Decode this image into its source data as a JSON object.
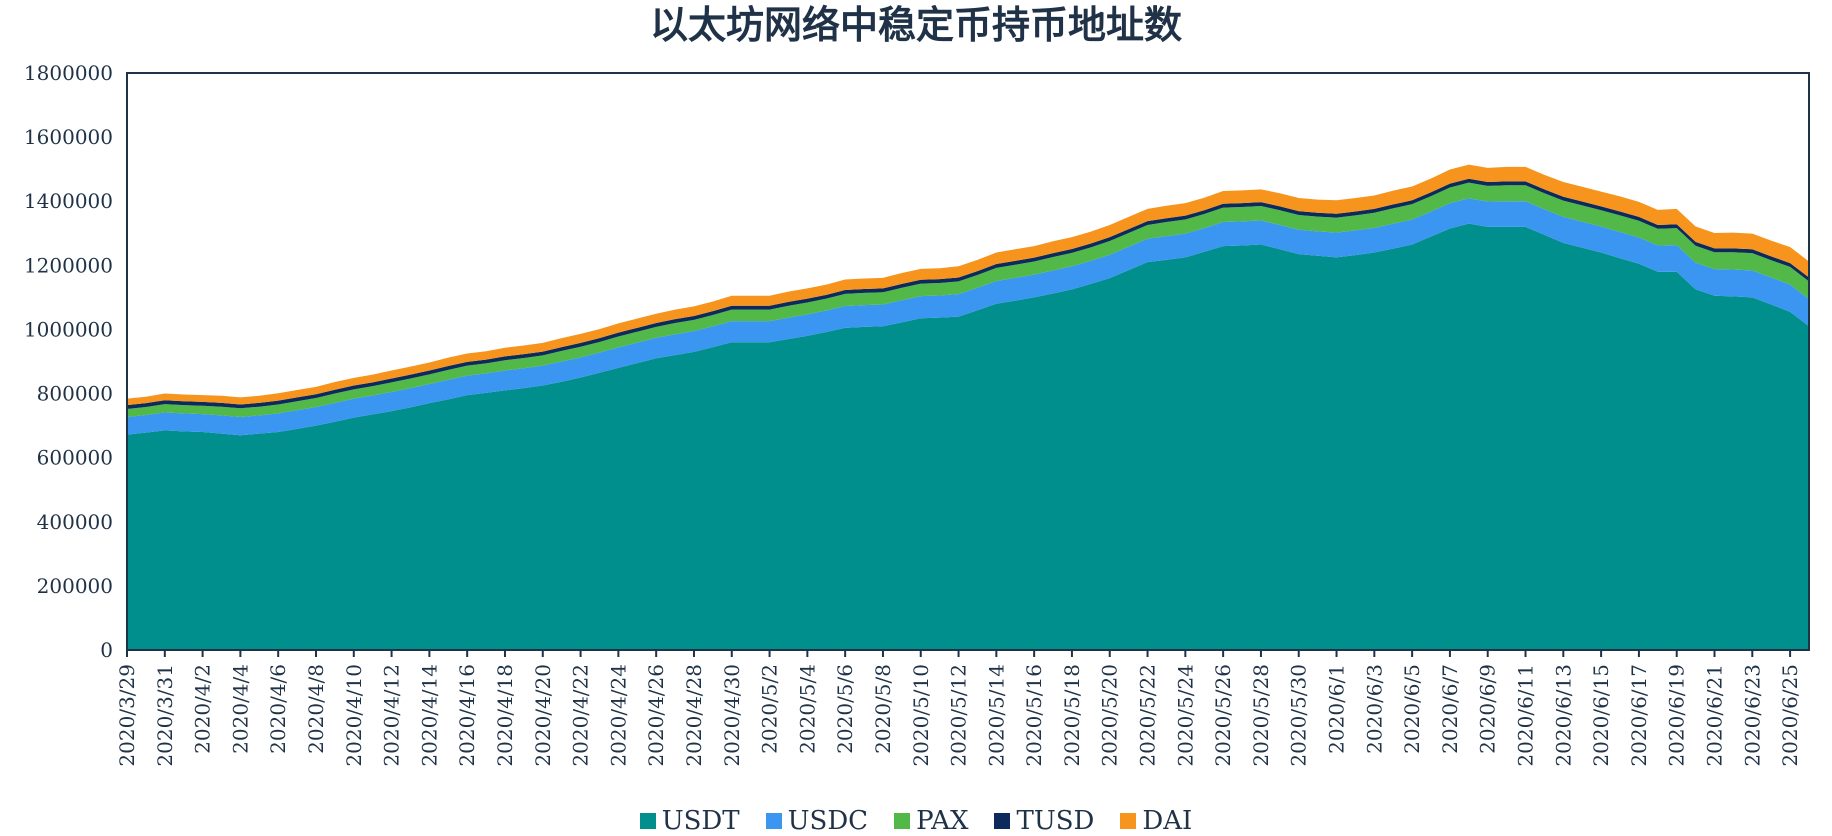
{
  "chart_data": {
    "type": "area",
    "stacked": true,
    "title": "以太坊网络中稳定币持币地址数",
    "xlabel": "",
    "ylabel": "",
    "ylim": [
      0,
      1800000
    ],
    "yticks": [
      0,
      200000,
      400000,
      600000,
      800000,
      1000000,
      1200000,
      1400000,
      1600000,
      1800000
    ],
    "grid": false,
    "legend_position": "bottom",
    "x": [
      "2020/3/29",
      "2020/3/30",
      "2020/3/31",
      "2020/4/1",
      "2020/4/2",
      "2020/4/3",
      "2020/4/4",
      "2020/4/5",
      "2020/4/6",
      "2020/4/7",
      "2020/4/8",
      "2020/4/9",
      "2020/4/10",
      "2020/4/11",
      "2020/4/12",
      "2020/4/13",
      "2020/4/14",
      "2020/4/15",
      "2020/4/16",
      "2020/4/17",
      "2020/4/18",
      "2020/4/19",
      "2020/4/20",
      "2020/4/21",
      "2020/4/22",
      "2020/4/23",
      "2020/4/24",
      "2020/4/25",
      "2020/4/26",
      "2020/4/27",
      "2020/4/28",
      "2020/4/29",
      "2020/4/30",
      "2020/5/1",
      "2020/5/2",
      "2020/5/3",
      "2020/5/4",
      "2020/5/5",
      "2020/5/6",
      "2020/5/7",
      "2020/5/8",
      "2020/5/9",
      "2020/5/10",
      "2020/5/11",
      "2020/5/12",
      "2020/5/13",
      "2020/5/14",
      "2020/5/15",
      "2020/5/16",
      "2020/5/17",
      "2020/5/18",
      "2020/5/19",
      "2020/5/20",
      "2020/5/21",
      "2020/5/22",
      "2020/5/23",
      "2020/5/24",
      "2020/5/25",
      "2020/5/26",
      "2020/5/27",
      "2020/5/28",
      "2020/5/29",
      "2020/5/30",
      "2020/5/31",
      "2020/6/1",
      "2020/6/2",
      "2020/6/3",
      "2020/6/4",
      "2020/6/5",
      "2020/6/6",
      "2020/6/7",
      "2020/6/8",
      "2020/6/9",
      "2020/6/10",
      "2020/6/11",
      "2020/6/12",
      "2020/6/13",
      "2020/6/14",
      "2020/6/15",
      "2020/6/16",
      "2020/6/17",
      "2020/6/18",
      "2020/6/19",
      "2020/6/20",
      "2020/6/21",
      "2020/6/22",
      "2020/6/23",
      "2020/6/24",
      "2020/6/25",
      "2020/6/26"
    ],
    "xtick_labels": [
      "2020/3/29",
      "2020/3/31",
      "2020/4/2",
      "2020/4/4",
      "2020/4/6",
      "2020/4/8",
      "2020/4/10",
      "2020/4/12",
      "2020/4/14",
      "2020/4/16",
      "2020/4/18",
      "2020/4/20",
      "2020/4/22",
      "2020/4/24",
      "2020/4/26",
      "2020/4/28",
      "2020/4/30",
      "2020/5/2",
      "2020/5/4",
      "2020/5/6",
      "2020/5/8",
      "2020/5/10",
      "2020/5/12",
      "2020/5/14",
      "2020/5/16",
      "2020/5/18",
      "2020/5/20",
      "2020/5/22",
      "2020/5/24",
      "2020/5/26",
      "2020/5/28",
      "2020/5/30",
      "2020/6/1",
      "2020/6/3",
      "2020/6/5",
      "2020/6/7",
      "2020/6/9",
      "2020/6/11",
      "2020/6/13",
      "2020/6/15",
      "2020/6/17",
      "2020/6/19",
      "2020/6/21",
      "2020/6/23",
      "2020/6/25"
    ],
    "series": [
      {
        "name": "USDT",
        "color": "#008f8c",
        "values": [
          672000,
          678000,
          685000,
          682000,
          680000,
          675000,
          670000,
          675000,
          680000,
          690000,
          700000,
          712000,
          725000,
          735000,
          745000,
          757000,
          770000,
          782000,
          795000,
          802000,
          810000,
          817000,
          825000,
          837000,
          850000,
          865000,
          880000,
          895000,
          910000,
          920000,
          930000,
          945000,
          960000,
          960000,
          960000,
          970000,
          980000,
          992000,
          1005000,
          1008000,
          1010000,
          1022000,
          1035000,
          1037000,
          1040000,
          1060000,
          1080000,
          1090000,
          1100000,
          1112000,
          1125000,
          1142000,
          1160000,
          1185000,
          1210000,
          1217000,
          1225000,
          1242000,
          1260000,
          1262000,
          1265000,
          1250000,
          1235000,
          1230000,
          1225000,
          1232000,
          1240000,
          1252000,
          1265000,
          1290000,
          1315000,
          1330000,
          1320000,
          1320000,
          1320000,
          1295000,
          1270000,
          1255000,
          1240000,
          1222000,
          1205000,
          1180000,
          1180000,
          1125000,
          1105000,
          1103000,
          1100000,
          1078000,
          1055000,
          1010000
        ]
      },
      {
        "name": "USDC",
        "color": "#3a96f0",
        "values": [
          55000,
          55000,
          56000,
          56000,
          56000,
          57000,
          57000,
          57000,
          58000,
          58000,
          58000,
          59000,
          59000,
          59000,
          60000,
          60000,
          60000,
          61000,
          61000,
          61000,
          62000,
          62000,
          62000,
          63000,
          63000,
          63000,
          64000,
          64000,
          64000,
          65000,
          65000,
          65000,
          66000,
          66000,
          66000,
          67000,
          67000,
          67000,
          68000,
          68000,
          68000,
          69000,
          69000,
          69000,
          70000,
          70000,
          71000,
          71000,
          71000,
          72000,
          72000,
          72000,
          73000,
          73000,
          73000,
          74000,
          74000,
          74000,
          75000,
          75000,
          75000,
          76000,
          76000,
          76000,
          77000,
          77000,
          77000,
          78000,
          78000,
          78000,
          79000,
          79000,
          79000,
          80000,
          80000,
          80000,
          81000,
          81000,
          81000,
          82000,
          82000,
          82000,
          83000,
          83000,
          83000,
          84000,
          84000,
          84000,
          85000,
          85000
        ]
      },
      {
        "name": "PAX",
        "color": "#52b848",
        "values": [
          25000,
          25000,
          26000,
          26000,
          26000,
          27000,
          27000,
          27000,
          28000,
          28000,
          28000,
          29000,
          29000,
          29000,
          30000,
          30000,
          30000,
          31000,
          31000,
          31000,
          32000,
          32000,
          32000,
          33000,
          33000,
          33000,
          34000,
          34000,
          34000,
          35000,
          35000,
          35000,
          36000,
          36000,
          36000,
          37000,
          37000,
          37000,
          38000,
          38000,
          38000,
          39000,
          39000,
          39000,
          40000,
          40000,
          41000,
          41000,
          41000,
          42000,
          42000,
          42000,
          43000,
          43000,
          43000,
          44000,
          44000,
          44000,
          45000,
          45000,
          45000,
          46000,
          46000,
          46000,
          47000,
          47000,
          47000,
          48000,
          48000,
          48000,
          49000,
          49000,
          49000,
          50000,
          50000,
          50000,
          51000,
          51000,
          51000,
          52000,
          52000,
          52000,
          53000,
          53000,
          53000,
          54000,
          54000,
          54000,
          55000,
          55000
        ]
      },
      {
        "name": "TUSD",
        "color": "#0c2a5c",
        "values": [
          12000,
          12000,
          12000,
          12000,
          12000,
          12000,
          12000,
          12000,
          12000,
          12000,
          12000,
          12000,
          12000,
          12000,
          12000,
          12000,
          12000,
          12000,
          12000,
          12000,
          12000,
          12000,
          12000,
          12000,
          12000,
          12000,
          12000,
          12000,
          12000,
          12000,
          12000,
          12000,
          12000,
          12000,
          12000,
          12000,
          12000,
          12000,
          12000,
          12000,
          12000,
          12000,
          12000,
          12000,
          12000,
          12000,
          12000,
          12000,
          12000,
          12000,
          12000,
          12000,
          12000,
          12000,
          12000,
          12000,
          12000,
          12000,
          12000,
          12000,
          12000,
          12000,
          12000,
          12000,
          12000,
          12000,
          12000,
          12000,
          12000,
          12000,
          12000,
          12000,
          12000,
          12000,
          12000,
          12000,
          12000,
          12000,
          12000,
          12000,
          12000,
          12000,
          12000,
          12000,
          12000,
          12000,
          12000,
          12000,
          12000,
          12000
        ]
      },
      {
        "name": "DAI",
        "color": "#f7941d",
        "values": [
          20000,
          20000,
          21000,
          21000,
          21000,
          22000,
          22000,
          22000,
          23000,
          23000,
          23000,
          24000,
          24000,
          24000,
          25000,
          25000,
          25000,
          26000,
          26000,
          26000,
          27000,
          27000,
          27000,
          28000,
          28000,
          28000,
          29000,
          29000,
          29000,
          30000,
          30000,
          30000,
          31000,
          31000,
          31000,
          32000,
          32000,
          32000,
          33000,
          33000,
          33000,
          34000,
          34000,
          34000,
          35000,
          35000,
          36000,
          36000,
          36000,
          37000,
          37000,
          37000,
          38000,
          38000,
          38000,
          39000,
          39000,
          39000,
          40000,
          40000,
          40000,
          41000,
          41000,
          41000,
          42000,
          42000,
          42000,
          43000,
          43000,
          43000,
          44000,
          44000,
          44000,
          45000,
          45000,
          45000,
          46000,
          46000,
          46000,
          47000,
          47000,
          47000,
          48000,
          48000,
          48000,
          49000,
          49000,
          49000,
          50000,
          50000
        ]
      }
    ]
  }
}
